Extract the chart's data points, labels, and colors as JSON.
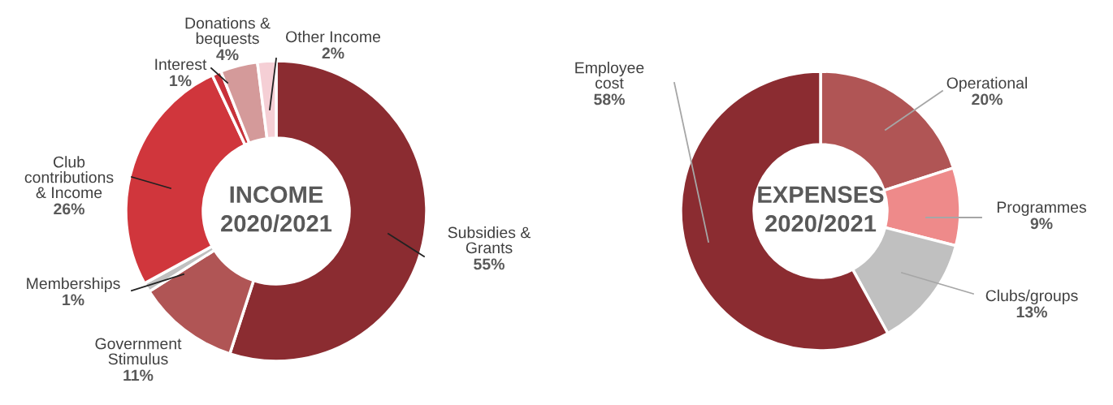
{
  "chart_data": [
    {
      "type": "donut",
      "title": "INCOME\n2020/2021",
      "categories": [
        "Subsidies &\nGrants",
        "Government\nStimulus",
        "Memberships",
        "Club\ncontributions\n& Income",
        "Interest",
        "Donations &\nbequests",
        "Other Income"
      ],
      "values": [
        55,
        11,
        1,
        26,
        1,
        4,
        2
      ],
      "value_labels": [
        "55%",
        "11%",
        "1%",
        "26%",
        "1%",
        "4%",
        "2%"
      ],
      "colors": [
        "#8b2c31",
        "#b05555",
        "#c0c0c0",
        "#d0363c",
        "#c8323a",
        "#d49a9a",
        "#f5cfd5"
      ],
      "legend": false
    },
    {
      "type": "donut",
      "title": "EXPENSES\n2020/2021",
      "categories": [
        "Operational",
        "Programmes",
        "Clubs/groups",
        "Employee\ncost"
      ],
      "values": [
        20,
        9,
        13,
        58
      ],
      "value_labels": [
        "20%",
        "9%",
        "13%",
        "58%"
      ],
      "colors": [
        "#b05555",
        "#ee8a8a",
        "#c0c0c0",
        "#8b2c31"
      ],
      "legend": false
    }
  ]
}
